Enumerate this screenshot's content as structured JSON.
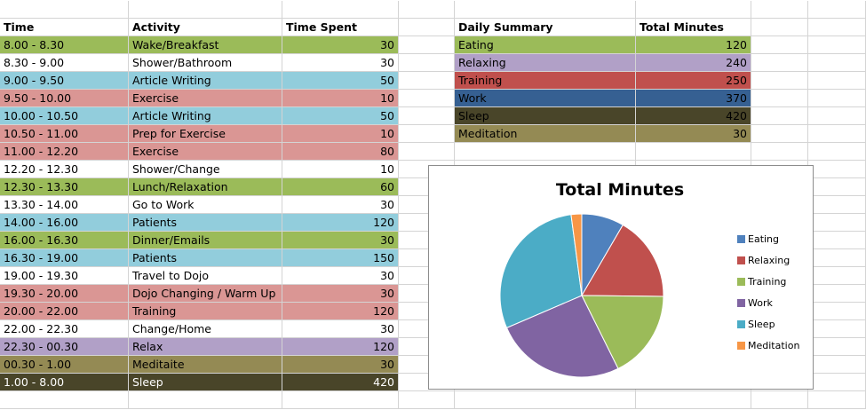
{
  "schedule": {
    "headers": [
      "Time",
      "Activity",
      "Time Spent"
    ],
    "rows": [
      {
        "time": "8.00 - 8.30",
        "activity": "Wake/Breakfast",
        "spent": "30",
        "color": "#9BBB59"
      },
      {
        "time": "8.30 - 9.00",
        "activity": "Shower/Bathroom",
        "spent": "30",
        "color": "#FFFFFF"
      },
      {
        "time": "9.00 - 9.50",
        "activity": "Article Writing",
        "spent": "50",
        "color": "#92CDDC"
      },
      {
        "time": "9.50 - 10.00",
        "activity": "Exercise",
        "spent": "10",
        "color": "#DA9694"
      },
      {
        "time": "10.00 - 10.50",
        "activity": "Article Writing",
        "spent": "50",
        "color": "#92CDDC"
      },
      {
        "time": "10.50 - 11.00",
        "activity": "Prep for Exercise",
        "spent": "10",
        "color": "#DA9694"
      },
      {
        "time": "11.00 - 12.20",
        "activity": "Exercise",
        "spent": "80",
        "color": "#DA9694"
      },
      {
        "time": "12.20 - 12.30",
        "activity": "Shower/Change",
        "spent": "10",
        "color": "#FFFFFF"
      },
      {
        "time": "12.30 - 13.30",
        "activity": "Lunch/Relaxation",
        "spent": "60",
        "color": "#9BBB59"
      },
      {
        "time": "13.30 - 14.00",
        "activity": "Go to Work",
        "spent": "30",
        "color": "#FFFFFF"
      },
      {
        "time": "14.00 - 16.00",
        "activity": "Patients",
        "spent": "120",
        "color": "#92CDDC"
      },
      {
        "time": "16.00 - 16.30",
        "activity": "Dinner/Emails",
        "spent": "30",
        "color": "#9BBB59"
      },
      {
        "time": "16.30 - 19.00",
        "activity": "Patients",
        "spent": "150",
        "color": "#92CDDC"
      },
      {
        "time": "19.00 - 19.30",
        "activity": "Travel to Dojo",
        "spent": "30",
        "color": "#FFFFFF"
      },
      {
        "time": "19.30 - 20.00",
        "activity": "Dojo Changing / Warm Up",
        "spent": "30",
        "color": "#DA9694"
      },
      {
        "time": "20.00 - 22.00",
        "activity": "Training",
        "spent": "120",
        "color": "#DA9694"
      },
      {
        "time": "22.00 - 22.30",
        "activity": "Change/Home",
        "spent": "30",
        "color": "#FFFFFF"
      },
      {
        "time": "22.30 - 00.30",
        "activity": "Relax",
        "spent": "120",
        "color": "#B1A0C7"
      },
      {
        "time": "00.30 - 1.00",
        "activity": "Meditaite",
        "spent": "30",
        "color": "#948A54"
      },
      {
        "time": "1.00 - 8.00",
        "activity": "Sleep",
        "spent": "420",
        "color": "#494529"
      }
    ]
  },
  "summary": {
    "headers": [
      "Daily Summary",
      "Total Minutes"
    ],
    "rows": [
      {
        "label": "Eating",
        "value": "120",
        "color": "#9BBB59"
      },
      {
        "label": "Relaxing",
        "value": "240",
        "color": "#B1A0C7"
      },
      {
        "label": "Training",
        "value": "250",
        "color": "#C0504D"
      },
      {
        "label": "Work",
        "value": "370",
        "color": "#366092"
      },
      {
        "label": "Sleep",
        "value": "420",
        "color": "#494529"
      },
      {
        "label": "Meditation",
        "value": "30",
        "color": "#948A54"
      }
    ]
  },
  "chart_data": {
    "type": "pie",
    "title": "Total Minutes",
    "categories": [
      "Eating",
      "Relaxing",
      "Training",
      "Work",
      "Sleep",
      "Meditation"
    ],
    "values": [
      120,
      240,
      250,
      370,
      420,
      30
    ],
    "colors": [
      "#4F81BD",
      "#C0504D",
      "#9BBB59",
      "#8064A2",
      "#4BACC6",
      "#F79646"
    ],
    "legend_position": "right"
  }
}
